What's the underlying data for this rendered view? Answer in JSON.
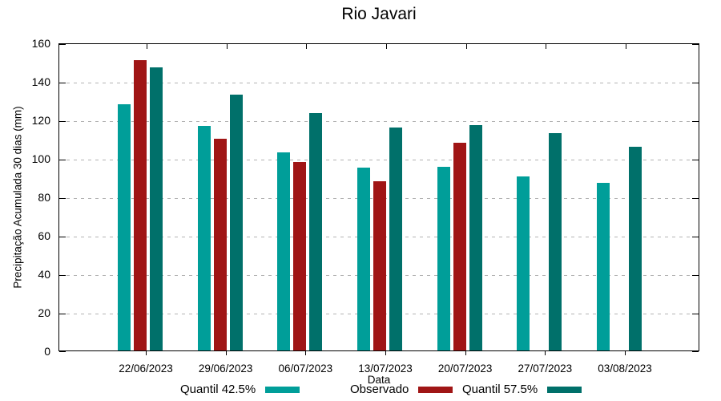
{
  "chart_data": {
    "type": "bar",
    "title": "Rio Javari",
    "xlabel": "Data",
    "ylabel": "Precipitação Acumulada 30 dias (mm)",
    "ylim": [
      0,
      160
    ],
    "yticks": [
      0,
      20,
      40,
      60,
      80,
      100,
      120,
      140,
      160
    ],
    "grid": true,
    "legend_position": "bottom",
    "background": "#ffffff",
    "axis_color": "#000000",
    "grid_color": "#b3b3b3",
    "categories": [
      "22/06/2023",
      "29/06/2023",
      "06/07/2023",
      "13/07/2023",
      "20/07/2023",
      "27/07/2023",
      "03/08/2023"
    ],
    "series": [
      {
        "name": "Quantil 42.5%",
        "color": "#009E99",
        "values": [
          128,
          116.5,
          103,
          95,
          95.5,
          90.5,
          87
        ]
      },
      {
        "name": "Observado",
        "color": "#A01515",
        "values": [
          151,
          110,
          98,
          88,
          108,
          null,
          null
        ]
      },
      {
        "name": "Quantil 57.5%",
        "color": "#00706A",
        "values": [
          147,
          133,
          123.5,
          116,
          117,
          113,
          106
        ]
      }
    ]
  }
}
